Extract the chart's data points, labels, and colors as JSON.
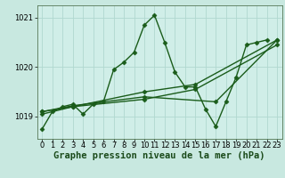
{
  "xlabel": "Graphe pression niveau de la mer (hPa)",
  "bg_color": "#c8e8e0",
  "plot_bg_color": "#d0eee8",
  "grid_color": "#b0d8d0",
  "line_color": "#1a5c1a",
  "xlim": [
    -0.5,
    23.5
  ],
  "ylim": [
    1018.55,
    1021.25
  ],
  "yticks": [
    1019,
    1020,
    1021
  ],
  "xticks": [
    0,
    1,
    2,
    3,
    4,
    5,
    6,
    7,
    8,
    9,
    10,
    11,
    12,
    13,
    14,
    15,
    16,
    17,
    18,
    19,
    20,
    21,
    22,
    23
  ],
  "series": [
    {
      "x": [
        0,
        1,
        2,
        3,
        4,
        5,
        6,
        7,
        8,
        9,
        10,
        11,
        12,
        13,
        14,
        15,
        16,
        17,
        18,
        19,
        20,
        21,
        22
      ],
      "y": [
        1018.75,
        1019.1,
        1019.2,
        1019.25,
        1019.05,
        1019.25,
        1019.3,
        1019.95,
        1020.1,
        1020.3,
        1020.85,
        1021.05,
        1020.5,
        1019.9,
        1019.6,
        1019.6,
        1019.15,
        1018.8,
        1019.3,
        1019.8,
        1020.45,
        1020.5,
        1020.55
      ]
    },
    {
      "x": [
        0,
        3,
        10,
        15,
        23
      ],
      "y": [
        1019.1,
        1019.2,
        1019.5,
        1019.65,
        1020.55
      ]
    },
    {
      "x": [
        0,
        3,
        10,
        15,
        23
      ],
      "y": [
        1019.05,
        1019.2,
        1019.35,
        1019.55,
        1020.45
      ]
    },
    {
      "x": [
        0,
        3,
        10,
        17,
        23
      ],
      "y": [
        1019.1,
        1019.22,
        1019.4,
        1019.3,
        1020.55
      ]
    }
  ],
  "marker": "D",
  "markersize": 2.5,
  "linewidth": 1.0,
  "xlabel_fontsize": 7.5,
  "tick_fontsize": 6.0
}
